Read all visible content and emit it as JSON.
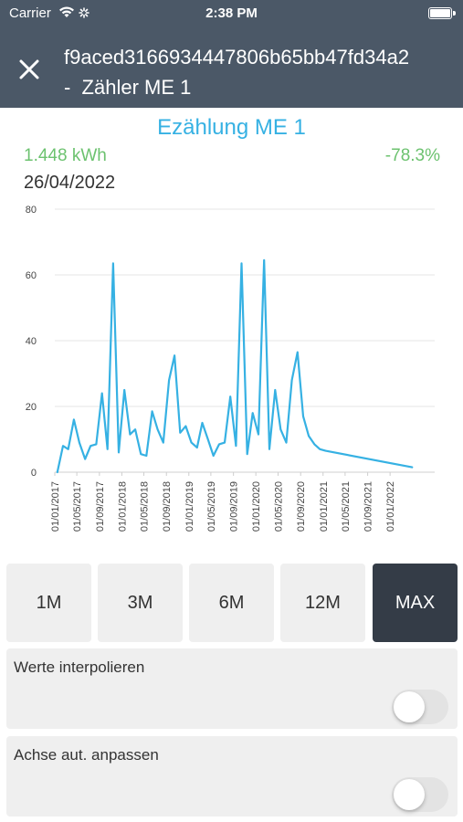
{
  "status_bar": {
    "carrier": "Carrier",
    "time": "2:38 PM"
  },
  "header": {
    "title_line1": "f9aced3166934447806b65bb47fd34a2",
    "title_line2": "-  Zähler ME 1",
    "close_icon": "close-icon"
  },
  "summary": {
    "title": "Ezählung ME 1",
    "value": "1.448 kWh",
    "change": "-78.3%",
    "date": "26/04/2022"
  },
  "colors": {
    "header": "#4b5867",
    "accent": "#36b1e3",
    "positive": "#6cc26f",
    "active_button": "#343c47"
  },
  "chart_data": {
    "type": "line",
    "ylim": [
      0,
      80
    ],
    "yticks": [
      "0",
      "20",
      "40",
      "60",
      "80"
    ],
    "xlim": [
      "2017-01-01",
      "2022-09-01"
    ],
    "xticks": [
      "01/01/2017",
      "01/05/2017",
      "01/09/2017",
      "01/01/2018",
      "01/05/2018",
      "01/09/2018",
      "01/01/2019",
      "01/05/2019",
      "01/09/2019",
      "01/01/2020",
      "01/05/2020",
      "01/09/2020",
      "01/01/2021",
      "01/05/2021",
      "01/09/2021",
      "01/01/2022"
    ],
    "grid": true,
    "series": [
      {
        "color": "#36b1e3",
        "x": [
          "2017-01-15",
          "2017-02-15",
          "2017-03-15",
          "2017-04-15",
          "2017-05-15",
          "2017-06-15",
          "2017-07-15",
          "2017-08-15",
          "2017-09-15",
          "2017-10-15",
          "2017-11-15",
          "2017-12-15",
          "2018-01-15",
          "2018-02-15",
          "2018-03-15",
          "2018-04-15",
          "2018-05-15",
          "2018-06-15",
          "2018-07-15",
          "2018-08-15",
          "2018-09-15",
          "2018-10-15",
          "2018-11-15",
          "2018-12-15",
          "2019-01-15",
          "2019-02-15",
          "2019-03-15",
          "2019-04-15",
          "2019-05-15",
          "2019-06-15",
          "2019-07-15",
          "2019-08-15",
          "2019-09-15",
          "2019-10-15",
          "2019-11-15",
          "2019-12-15",
          "2020-01-15",
          "2020-02-15",
          "2020-03-15",
          "2020-04-15",
          "2020-05-15",
          "2020-06-15",
          "2020-07-15",
          "2020-08-15",
          "2020-09-15",
          "2020-10-15",
          "2020-11-15",
          "2020-12-15",
          "2021-01-15",
          "2022-05-01"
        ],
        "y": [
          0,
          8,
          7,
          16,
          9,
          4,
          8,
          8.5,
          24,
          7,
          63.5,
          6,
          25,
          11.5,
          13,
          5.5,
          5,
          18.5,
          13,
          9,
          28,
          35.5,
          12,
          14,
          9,
          7.5,
          15,
          10,
          5,
          8.5,
          9,
          23,
          8,
          63.5,
          5.5,
          18,
          11.5,
          64.5,
          7,
          25,
          13,
          9,
          28,
          36.5,
          17,
          11,
          8.5,
          7,
          6.5,
          1.5
        ]
      }
    ]
  },
  "ranges": [
    {
      "label": "1M",
      "active": false
    },
    {
      "label": "3M",
      "active": false
    },
    {
      "label": "6M",
      "active": false
    },
    {
      "label": "12M",
      "active": false
    },
    {
      "label": "MAX",
      "active": true
    }
  ],
  "settings": [
    {
      "label": "Werte interpolieren",
      "enabled": false
    },
    {
      "label": "Achse aut. anpassen",
      "enabled": false
    }
  ]
}
